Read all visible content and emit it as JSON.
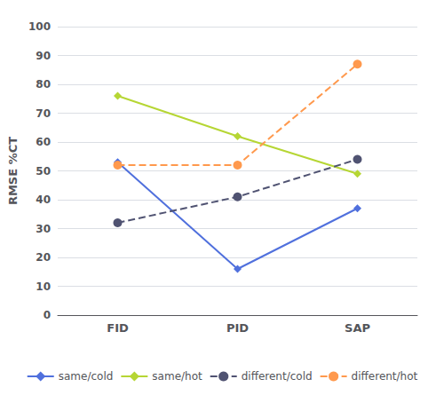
{
  "chart_data": {
    "type": "line",
    "ylabel": "RMSE %CT",
    "categories": [
      "FID",
      "PID",
      "SAP"
    ],
    "series": [
      {
        "name": "same/cold",
        "values": [
          53,
          16,
          37
        ],
        "marker": "diamond",
        "line_style": "solid"
      },
      {
        "name": "same/hot",
        "values": [
          76,
          62,
          49
        ],
        "marker": "diamond",
        "line_style": "solid"
      },
      {
        "name": "different/cold",
        "values": [
          32,
          41,
          54
        ],
        "marker": "circle",
        "line_style": "dashed"
      },
      {
        "name": "different/hot",
        "values": [
          52,
          52,
          87
        ],
        "marker": "circle",
        "line_style": "dashed"
      }
    ],
    "ylim": [
      0,
      100
    ],
    "yticks": [
      0,
      10,
      20,
      30,
      40,
      50,
      60,
      70,
      80,
      90,
      100
    ],
    "grid": true,
    "legend": "bottom"
  }
}
